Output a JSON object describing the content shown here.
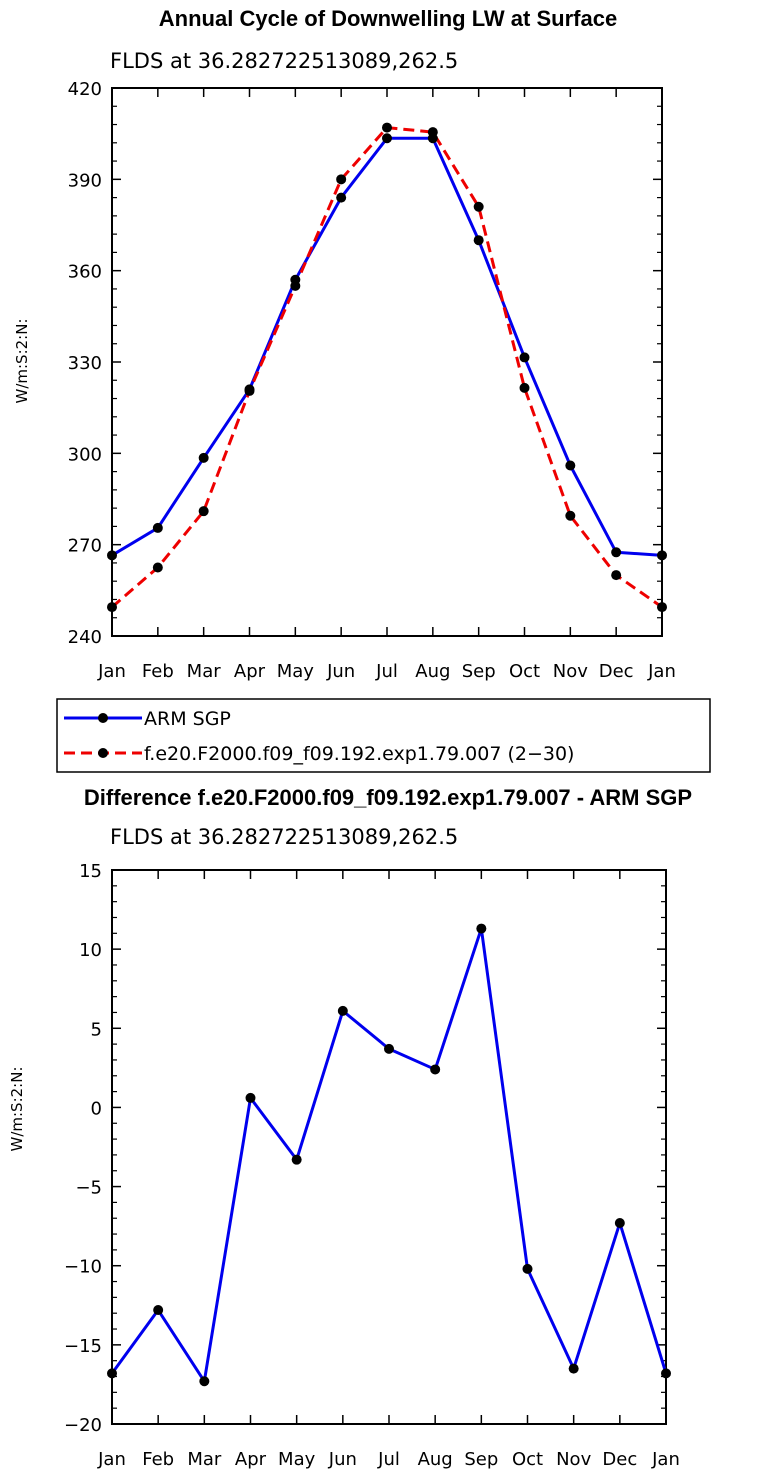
{
  "chart_data": [
    {
      "type": "line",
      "title": "Annual Cycle of Downwelling LW at Surface",
      "subtitle": "FLDS at 36.282722513089,262.5",
      "xlabel": "",
      "ylabel": "W/m:S:2:N:",
      "categories": [
        "Jan",
        "Feb",
        "Mar",
        "Apr",
        "May",
        "Jun",
        "Jul",
        "Aug",
        "Sep",
        "Oct",
        "Nov",
        "Dec",
        "Jan"
      ],
      "ylim": [
        240,
        420
      ],
      "yticks": [
        "240",
        "270",
        "300",
        "330",
        "360",
        "390",
        "420"
      ],
      "series": [
        {
          "name": "ARM SGP",
          "color": "#0000ee",
          "dash": "solid",
          "values": [
            266.5,
            275.5,
            298.5,
            321,
            357,
            384,
            403.5,
            403.5,
            370,
            331.5,
            296,
            267.5,
            266.5
          ]
        },
        {
          "name": "f.e20.F2000.f09_f09.192.exp1.79.007 (2−30)",
          "color": "#ee0000",
          "dash": "dashed",
          "values": [
            249.5,
            262.5,
            281,
            320.5,
            355,
            390,
            407,
            405.5,
            381,
            321.5,
            279.5,
            260,
            249.5
          ]
        }
      ],
      "legend": "below"
    },
    {
      "type": "line",
      "title": "Difference f.e20.F2000.f09_f09.192.exp1.79.007 - ARM SGP",
      "subtitle": "FLDS at 36.282722513089,262.5",
      "xlabel": "",
      "ylabel": "W/m:S:2:N:",
      "categories": [
        "Jan",
        "Feb",
        "Mar",
        "Apr",
        "May",
        "Jun",
        "Jul",
        "Aug",
        "Sep",
        "Oct",
        "Nov",
        "Dec",
        "Jan"
      ],
      "ylim": [
        -20,
        15
      ],
      "yticks": [
        "−20",
        "−15",
        "−10",
        "−5",
        "0",
        "5",
        "10",
        "15"
      ],
      "series": [
        {
          "name": "",
          "color": "#0000ee",
          "dash": "solid",
          "values": [
            -16.8,
            -12.8,
            -17.3,
            0.6,
            -3.3,
            6.1,
            3.7,
            2.4,
            11.3,
            -10.2,
            -16.5,
            -7.3,
            -16.8
          ]
        }
      ]
    }
  ]
}
